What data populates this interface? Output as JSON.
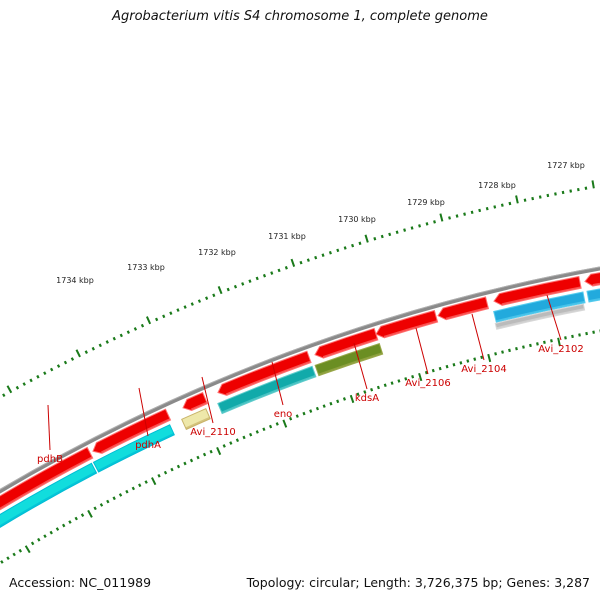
{
  "title": "Agrobacterium vitis S4 chromosome 1, complete genome",
  "footer": {
    "accession": "Accession: NC_011989",
    "topology": "Topology: circular; Length: 3,726,375 bp; Genes: 3,287"
  },
  "kbp_labels": [
    "1734 kbp",
    "1733 kbp",
    "1732 kbp",
    "1731 kbp",
    "1730 kbp",
    "1729 kbp",
    "1728 kbp",
    "1727 kbp"
  ],
  "gene_labels": [
    "pdhB",
    "pdhA",
    "Avi_2110",
    "eno",
    "kdsA",
    "Avi_2106",
    "Avi_2104",
    "Avi_2102"
  ],
  "colors": {
    "label": "#cc0000",
    "backbone": "#808080",
    "tick": "#1a7a1a",
    "gene_red": "#ee0000",
    "gene_cyan": "#11dddd",
    "gene_teal": "#11aaaa",
    "gene_olive": "#6b8e23",
    "gene_khaki": "#eee8aa",
    "gene_blue": "#22aadd",
    "gene_gray": "#bbbbbb"
  },
  "icons": {
    "forward_gene": "arrow-right-shape",
    "reverse_gene": "arrow-left-shape"
  }
}
